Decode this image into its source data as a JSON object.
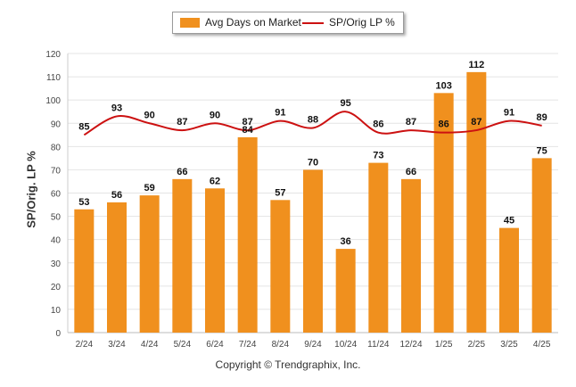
{
  "chart_data": {
    "type": "bar",
    "categories": [
      "2/24",
      "3/24",
      "4/24",
      "5/24",
      "6/24",
      "7/24",
      "8/24",
      "9/24",
      "10/24",
      "11/24",
      "12/24",
      "1/25",
      "2/25",
      "3/25",
      "4/25"
    ],
    "series": [
      {
        "name": "Avg Days on Market",
        "type": "bar",
        "values": [
          53,
          56,
          59,
          66,
          62,
          84,
          57,
          70,
          36,
          73,
          66,
          103,
          112,
          45,
          75
        ],
        "color": "#f0901e"
      },
      {
        "name": "SP/Orig LP %",
        "type": "line",
        "values": [
          85,
          93,
          90,
          87,
          90,
          87,
          91,
          88,
          95,
          86,
          87,
          86,
          87,
          91,
          89
        ],
        "color": "#cc1111"
      }
    ],
    "ylabel": "SP/Orig. LP %",
    "xlabel": "",
    "ylim": [
      0,
      120
    ],
    "yticks": [
      0,
      10,
      20,
      30,
      40,
      50,
      60,
      70,
      80,
      90,
      100,
      110,
      120
    ],
    "grid": true,
    "legend_position": "top-center"
  },
  "legend": {
    "bar_label": "Avg Days on Market",
    "line_label": "SP/Orig LP %"
  },
  "footer": {
    "copyright": "Copyright © Trendgraphix, Inc."
  }
}
